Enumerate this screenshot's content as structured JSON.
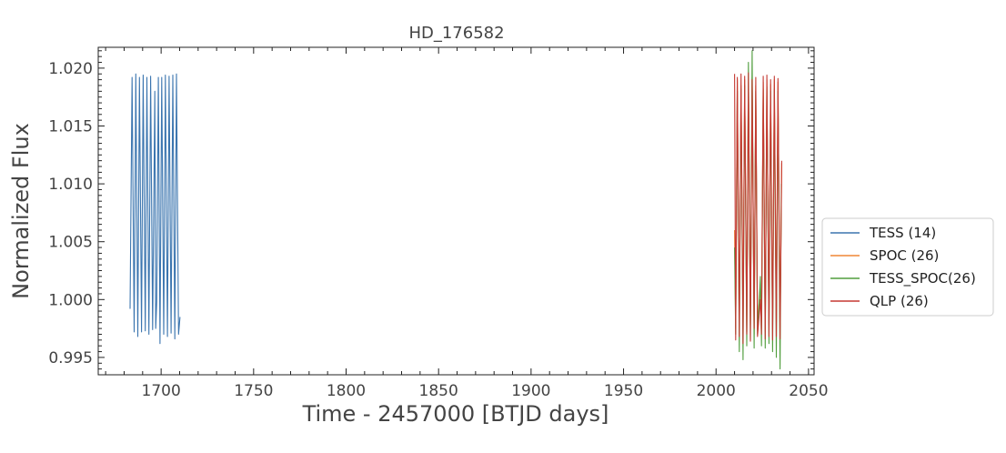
{
  "chart_data": {
    "type": "line",
    "title": "HD_176582",
    "xlabel": "Time - 2457000 [BTJD days]",
    "ylabel": "Normalized Flux",
    "xlim": [
      1666,
      2053
    ],
    "ylim": [
      0.9935,
      1.0218
    ],
    "xticks": [
      1700,
      1750,
      1800,
      1850,
      1900,
      1950,
      2000,
      2050
    ],
    "xtick_labels": [
      "1700",
      "1750",
      "1800",
      "1850",
      "1900",
      "1950",
      "2000",
      "2050"
    ],
    "yticks": [
      0.995,
      1.0,
      1.005,
      1.01,
      1.015,
      1.02
    ],
    "ytick_labels": [
      "0.995",
      "1.000",
      "1.005",
      "1.010",
      "1.015",
      "1.020"
    ],
    "grid": false,
    "legend_position": "outside-right",
    "series": [
      {
        "name": "TESS (14)",
        "color": "#3b75af",
        "x": [
          1683.2,
          1684.3,
          1685.4,
          1686.3,
          1687.4,
          1688.3,
          1689.4,
          1690.3,
          1691.4,
          1692.3,
          1693.4,
          1694.3,
          1695.4,
          1696.6,
          1697.1,
          1697.6,
          1698.5,
          1699.4,
          1700.3,
          1701.4,
          1702.3,
          1703.4,
          1704.3,
          1705.4,
          1706.3,
          1707.4,
          1708.3,
          1709.4,
          1710.2
        ],
        "y": [
          0.9992,
          1.0192,
          0.9972,
          1.0195,
          0.9968,
          1.0192,
          0.9972,
          1.0194,
          0.9973,
          1.0192,
          0.997,
          1.0193,
          0.9974,
          1.018,
          0.9975,
          0.9998,
          1.0192,
          0.9962,
          1.0192,
          0.997,
          1.0194,
          0.9968,
          1.0193,
          0.9971,
          1.0194,
          0.9966,
          1.0195,
          0.997,
          0.9985
        ]
      },
      {
        "name": "SPOC (26)",
        "color": "#ef8636",
        "x": [
          2010.0,
          2010.6,
          2011.5,
          2012.6,
          2013.5,
          2014.6,
          2015.5,
          2016.6,
          2017.5,
          2018.6,
          2019.5,
          2020.6,
          2021.5,
          2022.4,
          2024.0,
          2024.6,
          2025.5,
          2026.6,
          2027.5,
          2028.6,
          2029.5,
          2030.6,
          2031.5,
          2032.6,
          2033.5,
          2034.6,
          2035.5
        ],
        "y": [
          1.006,
          0.9975,
          1.019,
          0.997,
          1.0185,
          0.998,
          1.019,
          0.9972,
          1.0188,
          0.9978,
          1.0192,
          0.997,
          1.0185,
          0.998,
          1.001,
          0.9975,
          1.0188,
          0.9972,
          1.019,
          0.9978,
          1.0186,
          0.9974,
          1.019,
          0.998,
          1.0188,
          0.9976,
          1.0118
        ]
      },
      {
        "name": "TESS_SPOC(26)",
        "color": "#519e3e",
        "x": [
          2010.0,
          2010.6,
          2011.5,
          2012.6,
          2013.5,
          2014.6,
          2015.5,
          2016.6,
          2017.5,
          2018.6,
          2019.5,
          2020.6,
          2021.5,
          2022.4,
          2024.0,
          2024.6,
          2025.5,
          2026.6,
          2027.5,
          2028.6,
          2029.5,
          2030.6,
          2031.5,
          2032.6,
          2033.5,
          2034.6,
          2035.3
        ],
        "y": [
          1.0045,
          0.997,
          1.018,
          0.9955,
          1.0182,
          0.9948,
          1.0185,
          0.996,
          1.0205,
          0.9965,
          1.0215,
          0.9958,
          1.018,
          0.997,
          1.002,
          0.996,
          1.0182,
          0.9958,
          1.0184,
          0.9962,
          1.018,
          0.9955,
          1.0182,
          0.995,
          1.018,
          0.994,
          1.01
        ]
      },
      {
        "name": "QLP (26)",
        "color": "#c53932",
        "x": [
          2010.0,
          2010.6,
          2011.5,
          2012.6,
          2013.5,
          2014.6,
          2015.5,
          2016.6,
          2017.5,
          2018.6,
          2019.5,
          2020.6,
          2021.5,
          2022.4,
          2024.0,
          2024.6,
          2025.5,
          2026.6,
          2027.5,
          2028.6,
          2029.5,
          2030.6,
          2031.5,
          2032.6,
          2033.5,
          2034.6,
          2035.5
        ],
        "y": [
          1.0195,
          0.9965,
          1.0192,
          0.9968,
          1.0195,
          0.9962,
          1.0193,
          0.997,
          1.0196,
          0.9964,
          1.019,
          0.9975,
          1.0192,
          0.9968,
          1.0,
          0.997,
          1.0193,
          0.9966,
          1.0194,
          0.9968,
          1.019,
          0.9965,
          1.0193,
          0.9968,
          1.0191,
          0.9966,
          1.012
        ]
      }
    ]
  }
}
